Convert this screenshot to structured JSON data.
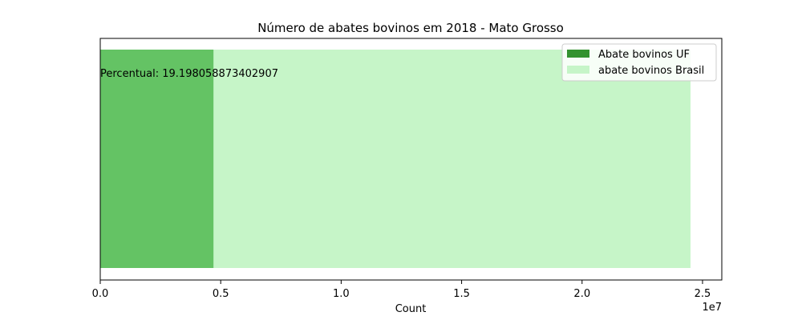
{
  "chart_data": {
    "type": "bar",
    "orientation": "horizontal",
    "title": "Número de abates bovinos em 2018 - Mato Grosso",
    "xlabel": "Count",
    "ylabel": "",
    "x_offset_label": "1e7",
    "xlim": [
      0,
      25800000
    ],
    "xticks": [
      0,
      5000000,
      10000000,
      15000000,
      20000000,
      25000000
    ],
    "xtick_labels": [
      "0.0",
      "0.5",
      "1.0",
      "1.5",
      "2.0",
      "2.5"
    ],
    "grid": false,
    "legend_position": "top-right",
    "annotation": "Percentual: 19.198058873402907",
    "series": [
      {
        "name": "abate bovinos Brasil",
        "value": 24500000,
        "color": "#c6f5c8"
      },
      {
        "name": "Abate bovinos UF",
        "value": 4700000,
        "color": "#33922f",
        "overlay_color": "#64c364"
      }
    ],
    "legend": [
      {
        "label": "Abate bovinos UF",
        "color": "#33922f"
      },
      {
        "label": "abate bovinos Brasil",
        "color": "#c6f5c8"
      }
    ]
  }
}
